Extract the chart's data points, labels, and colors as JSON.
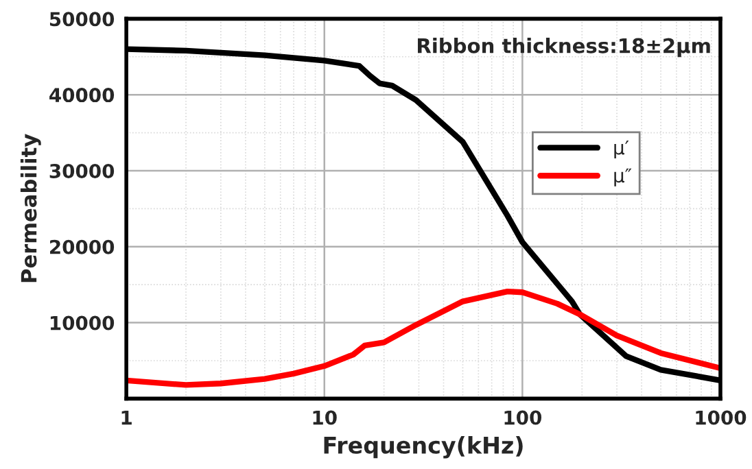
{
  "chart_data": {
    "type": "line",
    "xlabel": "Frequency(kHz)",
    "ylabel": "Permeability",
    "annotations": [
      "Ribbon thickness:18±2μm"
    ],
    "log": "x",
    "grid": true,
    "legend": "right",
    "line_style": "solid",
    "marker": "none",
    "xlim": [
      1,
      1000
    ],
    "xticks": [
      1,
      10,
      100,
      1000
    ],
    "ylim": [
      0,
      50000
    ],
    "yticks": [
      {
        "value": 0,
        "label": null
      },
      10000,
      20000,
      30000,
      40000,
      50000
    ],
    "series": [
      {
        "name": "μ′",
        "color": "#000000",
        "x": [
          1,
          2,
          5,
          10,
          15,
          17,
          19,
          22,
          29,
          50,
          84,
          100,
          178,
          195,
          334,
          500,
          1000
        ],
        "values": [
          46000,
          45800,
          45200,
          44500,
          43800,
          42500,
          41500,
          41200,
          39300,
          33800,
          24100,
          20600,
          12800,
          11100,
          5600,
          3800,
          2400
        ]
      },
      {
        "name": "μ″",
        "color": "#ff0000",
        "x": [
          1,
          2,
          3,
          5,
          7,
          10,
          14,
          16,
          20,
          29,
          50,
          84,
          100,
          150,
          195,
          300,
          500,
          1000
        ],
        "values": [
          2400,
          1800,
          2000,
          2600,
          3300,
          4300,
          5800,
          7000,
          7400,
          9700,
          12800,
          14100,
          14000,
          12500,
          11100,
          8300,
          6000,
          4000
        ]
      }
    ]
  }
}
